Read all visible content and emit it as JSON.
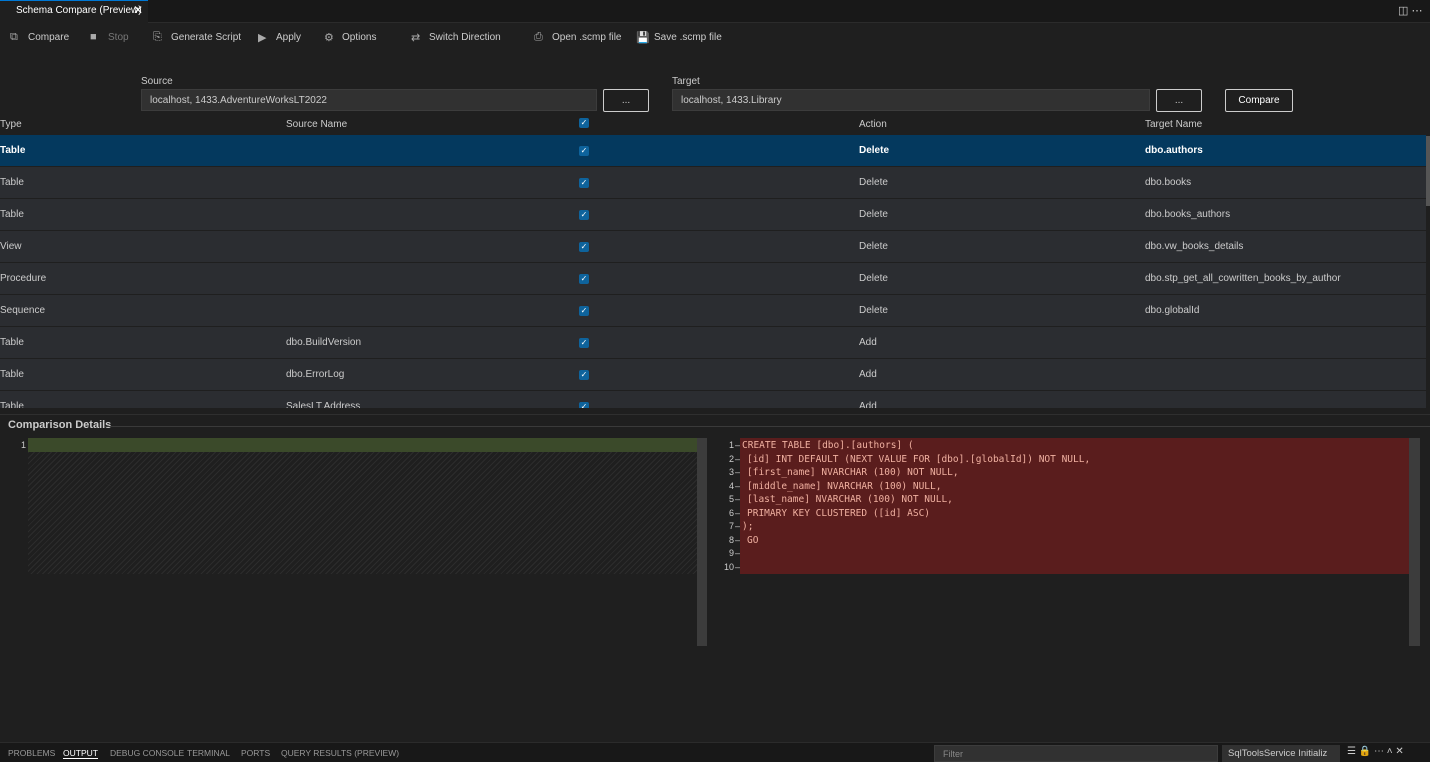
{
  "tab": {
    "title": "Schema Compare (Preview)"
  },
  "toolbar": [
    "Compare",
    "Stop",
    "Generate Script",
    "Apply",
    "Options",
    "Switch Direction",
    "Open .scmp file",
    "Save .scmp file"
  ],
  "source": {
    "label": "Source",
    "value": "localhost, 1433.AdventureWorksLT2022",
    "button": "..."
  },
  "target": {
    "label": "Target",
    "value": "localhost, 1433.Library",
    "button": "...",
    "compare": "Compare"
  },
  "table": {
    "columns": [
      "Type",
      "Source Name",
      "Action",
      "Target Name"
    ],
    "rows": [
      {
        "type": "Table",
        "action": "Delete",
        "target": "dbo.authors"
      },
      {
        "type": "Table",
        "action": "Delete",
        "target": "dbo.books"
      },
      {
        "type": "Table",
        "action": "Delete",
        "target": "dbo.books_authors"
      },
      {
        "type": "View",
        "action": "Delete",
        "target": "dbo.vw_books_details"
      },
      {
        "type": "Procedure",
        "action": "Delete",
        "target": "dbo.stp_get_all_cowritten_books_by_author"
      },
      {
        "type": "Sequence",
        "action": "Delete",
        "target": "dbo.globalId"
      },
      {
        "type": "Table",
        "source": "dbo.BuildVersion",
        "action": "Add"
      },
      {
        "type": "Table",
        "source": "dbo.ErrorLog",
        "action": "Add"
      },
      {
        "type": "Table",
        "source": "SalesLT.Address",
        "action": "Add"
      }
    ]
  },
  "details": {
    "title": "Comparison Details",
    "left_line_numbers": [
      1
    ],
    "right_line_numbers": [
      1,
      2,
      3,
      4,
      5,
      6,
      7,
      8,
      9,
      10
    ],
    "right_code": [
      "CREATE TABLE [dbo].[authors] (",
      "[id] INT DEFAULT (NEXT VALUE FOR [dbo].[globalId]) NOT NULL,",
      "[first_name] NVARCHAR (100) NOT NULL,",
      "[middle_name] NVARCHAR (100) NULL,",
      "[last_name] NVARCHAR (100) NOT NULL,",
      "PRIMARY KEY CLUSTERED ([id] ASC)",
      ");",
      "GO"
    ]
  },
  "panel": {
    "tabs": [
      "PROBLEMS",
      "OUTPUT",
      "DEBUG CONSOLE",
      "TERMINAL",
      "PORTS",
      "QUERY RESULTS (PREVIEW)"
    ],
    "filter": "Filter",
    "dropdown": "SqlToolsService Initializ"
  }
}
